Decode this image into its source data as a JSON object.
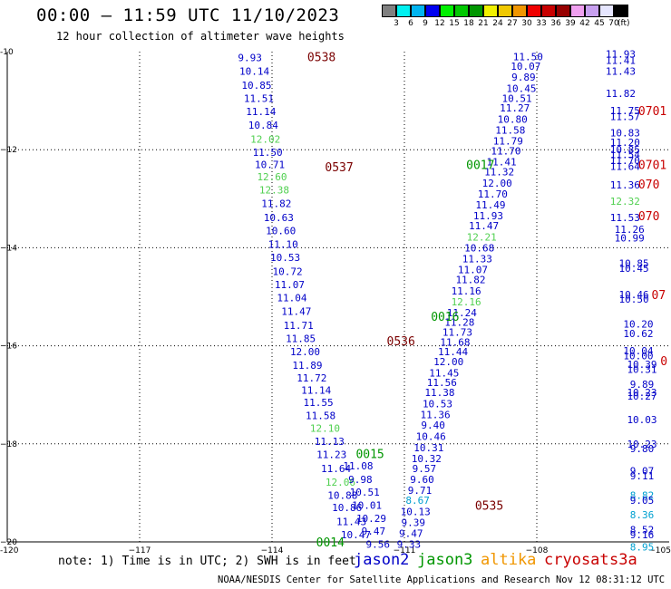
{
  "header": {
    "title": "00:00 – 11:59 UTC 11/10/2023",
    "subtitle": "12 hour collection of altimeter wave heights"
  },
  "legend": {
    "unit": "(ft)",
    "bins": [
      {
        "color": "#808080",
        "label": "3"
      },
      {
        "color": "#00f0f0",
        "label": "6"
      },
      {
        "color": "#00b4f0",
        "label": "9"
      },
      {
        "color": "#0000f0",
        "label": "12"
      },
      {
        "color": "#00f000",
        "label": "15"
      },
      {
        "color": "#00c800",
        "label": "18"
      },
      {
        "color": "#009600",
        "label": "21"
      },
      {
        "color": "#f0f000",
        "label": "24"
      },
      {
        "color": "#f0c800",
        "label": "27"
      },
      {
        "color": "#f09600",
        "label": "30"
      },
      {
        "color": "#f00000",
        "label": "33"
      },
      {
        "color": "#c80000",
        "label": "36"
      },
      {
        "color": "#960000",
        "label": "39"
      },
      {
        "color": "#f0a0f0",
        "label": "42"
      },
      {
        "color": "#c8a0f0",
        "label": "45"
      },
      {
        "color": "#e6e6ff",
        "label": "70"
      },
      {
        "color": "#000000",
        "label": ""
      }
    ]
  },
  "chart_data": {
    "type": "scatter",
    "title": "00:00 – 11:59 UTC 11/10/2023",
    "subtitle": "12 hour collection of altimeter wave heights",
    "xlim": [
      -120,
      -105
    ],
    "ylim": [
      -20,
      -10
    ],
    "xticks": [
      -120,
      -117,
      -114,
      -111,
      -108,
      -105
    ],
    "xtick_labels": [
      "-120",
      "−117",
      "−114",
      "−111",
      "−108",
      "−105"
    ],
    "yticks": [
      -10,
      -12,
      -14,
      -16,
      -18,
      -20
    ],
    "ytick_labels": [
      "-10",
      "−12",
      "−14",
      "−16",
      "−18",
      "−20"
    ],
    "grid": true,
    "colors": {
      "jason2": "#0000c8",
      "jason3": "#009600",
      "altika": "#f09600",
      "cryosat": "#c80000",
      "s3a": "#c80000",
      "light_green": "#50d050",
      "cyan": "#00a0d0",
      "pass_label": "#7a0000"
    },
    "pass_labels": [
      {
        "text": "0538",
        "x": -113.2,
        "y": -10.1,
        "color": "pass_label"
      },
      {
        "text": "0537",
        "x": -112.8,
        "y": -12.35,
        "color": "pass_label"
      },
      {
        "text": "0536",
        "x": -111.4,
        "y": -15.9,
        "color": "pass_label"
      },
      {
        "text": "0535",
        "x": -109.4,
        "y": -19.25,
        "color": "pass_label"
      },
      {
        "text": "0017",
        "x": -109.6,
        "y": -12.3,
        "color": "jason3"
      },
      {
        "text": "0016",
        "x": -110.4,
        "y": -15.4,
        "color": "jason3"
      },
      {
        "text": "0015",
        "x": -112.1,
        "y": -18.2,
        "color": "jason3"
      },
      {
        "text": "0014",
        "x": -113.0,
        "y": -20.0,
        "color": "jason3"
      },
      {
        "text": "0701",
        "x": -105.7,
        "y": -11.2,
        "color": "cryosat"
      },
      {
        "text": "0701",
        "x": -105.7,
        "y": -12.3,
        "color": "cryosat"
      },
      {
        "text": "070",
        "x": -105.7,
        "y": -12.7,
        "color": "cryosat"
      },
      {
        "text": "070",
        "x": -105.7,
        "y": -13.35,
        "color": "cryosat"
      },
      {
        "text": "07",
        "x": -105.4,
        "y": -14.95,
        "color": "cryosat"
      },
      {
        "text": "0",
        "x": -105.2,
        "y": -16.3,
        "color": "cryosat"
      }
    ],
    "series": [
      {
        "name": "pass 0538",
        "color": "jason2",
        "points": [
          {
            "x": -114.5,
            "y": -10.12,
            "v": "9.93"
          },
          {
            "x": -114.4,
            "y": -10.4,
            "v": "10.14"
          },
          {
            "x": -114.35,
            "y": -10.68,
            "v": "10.85"
          },
          {
            "x": -114.3,
            "y": -10.95,
            "v": "11.51"
          },
          {
            "x": -114.25,
            "y": -11.22,
            "v": "11.14"
          },
          {
            "x": -114.2,
            "y": -11.5,
            "v": "10.84"
          },
          {
            "x": -114.15,
            "y": -11.78,
            "v": "12.02",
            "c": "light_green"
          },
          {
            "x": -114.1,
            "y": -12.05,
            "v": "11.50"
          },
          {
            "x": -114.05,
            "y": -12.3,
            "v": "10.71"
          },
          {
            "x": -114.0,
            "y": -12.55,
            "v": "12.60",
            "c": "light_green"
          },
          {
            "x": -113.95,
            "y": -12.82,
            "v": "12.38",
            "c": "light_green"
          },
          {
            "x": -113.9,
            "y": -13.1,
            "v": "11.82"
          },
          {
            "x": -113.85,
            "y": -13.38,
            "v": "10.63"
          },
          {
            "x": -113.8,
            "y": -13.65,
            "v": "10.60"
          },
          {
            "x": -113.75,
            "y": -13.93,
            "v": "11.10"
          },
          {
            "x": -113.7,
            "y": -14.2,
            "v": "10.53"
          },
          {
            "x": -113.65,
            "y": -14.48,
            "v": "10.72"
          }
        ]
      },
      {
        "name": "pass 0537",
        "color": "jason2",
        "points": [
          {
            "x": -113.6,
            "y": -14.75,
            "v": "11.07"
          },
          {
            "x": -113.55,
            "y": -15.02,
            "v": "11.04"
          },
          {
            "x": -113.45,
            "y": -15.3,
            "v": "11.47"
          },
          {
            "x": -113.4,
            "y": -15.58,
            "v": "11.71"
          },
          {
            "x": -113.35,
            "y": -15.85,
            "v": "11.85"
          },
          {
            "x": -113.25,
            "y": -16.12,
            "v": "12.00"
          },
          {
            "x": -113.2,
            "y": -16.4,
            "v": "11.89"
          },
          {
            "x": -113.1,
            "y": -16.65,
            "v": "11.72"
          }
        ]
      },
      {
        "name": "pass 0536",
        "color": "jason2",
        "points": [
          {
            "x": -113.0,
            "y": -16.9,
            "v": "11.14"
          },
          {
            "x": -112.95,
            "y": -17.15,
            "v": "11.55"
          },
          {
            "x": -112.9,
            "y": -17.42,
            "v": "11.58"
          },
          {
            "x": -112.8,
            "y": -17.68,
            "v": "12.10",
            "c": "light_green"
          },
          {
            "x": -112.7,
            "y": -17.95,
            "v": "11.13"
          },
          {
            "x": -112.65,
            "y": -18.22,
            "v": "11.23"
          },
          {
            "x": -112.55,
            "y": -18.5,
            "v": "11.64"
          },
          {
            "x": -112.45,
            "y": -18.78,
            "v": "12.06",
            "c": "light_green"
          },
          {
            "x": -112.4,
            "y": -19.05,
            "v": "10.88"
          },
          {
            "x": -112.3,
            "y": -19.3,
            "v": "10.86"
          },
          {
            "x": -112.2,
            "y": -19.58,
            "v": "11.43"
          },
          {
            "x": -112.1,
            "y": -19.85,
            "v": "10.47"
          }
        ]
      },
      {
        "name": "pass 0535",
        "color": "jason2",
        "points": [
          {
            "x": -112.05,
            "y": -18.45,
            "v": "11.08"
          },
          {
            "x": -112.0,
            "y": -18.72,
            "v": "9.98"
          },
          {
            "x": -111.9,
            "y": -18.98,
            "v": "10.51"
          },
          {
            "x": -111.85,
            "y": -19.25,
            "v": "10.01"
          },
          {
            "x": -111.75,
            "y": -19.52,
            "v": "10.29"
          },
          {
            "x": -111.7,
            "y": -19.78,
            "v": "9.47"
          },
          {
            "x": -111.6,
            "y": -20.05,
            "v": "9.56"
          },
          {
            "x": -111.5,
            "y": -20.3,
            "v": "9.53"
          }
        ]
      },
      {
        "name": "pass 0017",
        "color": "jason2",
        "points": [
          {
            "x": -108.2,
            "y": -10.1,
            "v": "11.50"
          },
          {
            "x": -108.25,
            "y": -10.3,
            "v": "10.07"
          },
          {
            "x": -108.3,
            "y": -10.52,
            "v": "9.89"
          },
          {
            "x": -108.35,
            "y": -10.75,
            "v": "10.45"
          },
          {
            "x": -108.45,
            "y": -10.95,
            "v": "10.51"
          },
          {
            "x": -108.5,
            "y": -11.15,
            "v": "11.27"
          },
          {
            "x": -108.55,
            "y": -11.38,
            "v": "10.80"
          },
          {
            "x": -108.6,
            "y": -11.6,
            "v": "11.58"
          },
          {
            "x": -108.65,
            "y": -11.82,
            "v": "11.79"
          },
          {
            "x": -108.7,
            "y": -12.02,
            "v": "11.70"
          },
          {
            "x": -108.8,
            "y": -12.25,
            "v": "11.41"
          },
          {
            "x": -108.85,
            "y": -12.45,
            "v": "11.32"
          },
          {
            "x": -108.9,
            "y": -12.68,
            "v": "12.00"
          },
          {
            "x": -109.0,
            "y": -12.9,
            "v": "11.70"
          },
          {
            "x": -109.05,
            "y": -13.12,
            "v": "11.49"
          },
          {
            "x": -109.1,
            "y": -13.35,
            "v": "11.93"
          },
          {
            "x": -109.2,
            "y": -13.55,
            "v": "11.47"
          },
          {
            "x": -109.25,
            "y": -13.78,
            "v": "12.21",
            "c": "light_green"
          },
          {
            "x": -109.3,
            "y": -14.0,
            "v": "10.68"
          }
        ]
      },
      {
        "name": "pass 0016",
        "color": "jason2",
        "points": [
          {
            "x": -109.35,
            "y": -14.22,
            "v": "11.33"
          },
          {
            "x": -109.45,
            "y": -14.45,
            "v": "11.07"
          },
          {
            "x": -109.5,
            "y": -14.65,
            "v": "11.82"
          },
          {
            "x": -109.6,
            "y": -14.88,
            "v": "11.16"
          },
          {
            "x": -109.6,
            "y": -15.1,
            "v": "12.16",
            "c": "light_green"
          },
          {
            "x": -109.7,
            "y": -15.32,
            "v": "11.24"
          },
          {
            "x": -109.75,
            "y": -15.52,
            "v": "11.28"
          },
          {
            "x": -109.8,
            "y": -15.72,
            "v": "11.73"
          },
          {
            "x": -109.85,
            "y": -15.92,
            "v": "11.68"
          },
          {
            "x": -109.9,
            "y": -16.12,
            "v": "11.44"
          },
          {
            "x": -110.0,
            "y": -16.32,
            "v": "12.00"
          }
        ]
      },
      {
        "name": "pass 0015",
        "color": "jason2",
        "points": [
          {
            "x": -110.1,
            "y": -16.55,
            "v": "11.45"
          },
          {
            "x": -110.15,
            "y": -16.75,
            "v": "11.56"
          },
          {
            "x": -110.2,
            "y": -16.95,
            "v": "11.38"
          },
          {
            "x": -110.25,
            "y": -17.18,
            "v": "10.53"
          },
          {
            "x": -110.3,
            "y": -17.4,
            "v": "11.36"
          },
          {
            "x": -110.35,
            "y": -17.62,
            "v": "9.40"
          },
          {
            "x": -110.4,
            "y": -17.85,
            "v": "10.46"
          },
          {
            "x": -110.45,
            "y": -18.08,
            "v": "10.31"
          },
          {
            "x": -110.5,
            "y": -18.3,
            "v": "10.32"
          },
          {
            "x": -110.55,
            "y": -18.5,
            "v": "9.57"
          },
          {
            "x": -110.6,
            "y": -18.72,
            "v": "9.60"
          }
        ]
      },
      {
        "name": "pass 0014",
        "color": "jason2",
        "points": [
          {
            "x": -110.65,
            "y": -18.95,
            "v": "9.71"
          },
          {
            "x": -110.7,
            "y": -19.15,
            "v": "8.67",
            "c": "cyan"
          },
          {
            "x": -110.75,
            "y": -19.38,
            "v": "10.13"
          },
          {
            "x": -110.8,
            "y": -19.6,
            "v": "9.39"
          },
          {
            "x": -110.85,
            "y": -19.82,
            "v": "9.47"
          },
          {
            "x": -110.9,
            "y": -20.05,
            "v": "9.33"
          }
        ]
      },
      {
        "name": "pass 0701 east",
        "color": "jason2",
        "points": [
          {
            "x": -106.1,
            "y": -10.05,
            "v": "11.93"
          },
          {
            "x": -106.1,
            "y": -10.18,
            "v": "11.41"
          },
          {
            "x": -106.1,
            "y": -10.4,
            "v": "11.43"
          },
          {
            "x": -106.1,
            "y": -10.85,
            "v": "11.82"
          },
          {
            "x": -106.0,
            "y": -11.2,
            "v": "11.75"
          },
          {
            "x": -106.0,
            "y": -11.32,
            "v": "11.57"
          },
          {
            "x": -106.0,
            "y": -11.65,
            "v": "10.83"
          },
          {
            "x": -106.0,
            "y": -11.85,
            "v": "11.20"
          },
          {
            "x": -106.0,
            "y": -12.0,
            "v": "10.85"
          },
          {
            "x": -106.0,
            "y": -12.1,
            "v": "11.54"
          },
          {
            "x": -106.0,
            "y": -12.22,
            "v": "11.70"
          },
          {
            "x": -106.0,
            "y": -12.34,
            "v": "11.64"
          },
          {
            "x": -106.0,
            "y": -12.72,
            "v": "11.36"
          },
          {
            "x": -106.0,
            "y": -13.05,
            "v": "12.32",
            "c": "light_green"
          },
          {
            "x": -106.0,
            "y": -13.38,
            "v": "11.53"
          },
          {
            "x": -105.9,
            "y": -13.62,
            "v": "11.26"
          },
          {
            "x": -105.9,
            "y": -13.8,
            "v": "10.99"
          },
          {
            "x": -105.8,
            "y": -14.32,
            "v": "10.85"
          },
          {
            "x": -105.8,
            "y": -14.42,
            "v": "10.45"
          },
          {
            "x": -105.8,
            "y": -14.95,
            "v": "10.46"
          },
          {
            "x": -105.8,
            "y": -15.05,
            "v": "10.50"
          },
          {
            "x": -105.7,
            "y": -15.55,
            "v": "10.20"
          },
          {
            "x": -105.7,
            "y": -15.75,
            "v": "10.62"
          },
          {
            "x": -105.7,
            "y": -16.1,
            "v": "10.04"
          },
          {
            "x": -105.7,
            "y": -16.2,
            "v": "10.00"
          },
          {
            "x": -105.6,
            "y": -16.38,
            "v": "10.39"
          },
          {
            "x": -105.6,
            "y": -16.48,
            "v": "10.31"
          },
          {
            "x": -105.6,
            "y": -16.78,
            "v": "9.89"
          },
          {
            "x": -105.6,
            "y": -16.95,
            "v": "10.23"
          },
          {
            "x": -105.6,
            "y": -17.02,
            "v": "10.27"
          },
          {
            "x": -105.6,
            "y": -17.5,
            "v": "10.03"
          },
          {
            "x": -105.5,
            "y": -18.0,
            "v": "10.23"
          },
          {
            "x": -105.5,
            "y": -18.1,
            "v": "9.80"
          },
          {
            "x": -105.5,
            "y": -18.55,
            "v": "9.07"
          },
          {
            "x": -105.5,
            "y": -18.65,
            "v": "9.11"
          },
          {
            "x": -105.5,
            "y": -19.05,
            "v": "8.82",
            "c": "cyan"
          },
          {
            "x": -105.4,
            "y": -19.15,
            "v": "9.05"
          },
          {
            "x": -105.4,
            "y": -19.45,
            "v": "8.36",
            "c": "cyan"
          },
          {
            "x": -105.4,
            "y": -19.75,
            "v": "8.52"
          },
          {
            "x": -105.4,
            "y": -19.85,
            "v": "9.16"
          },
          {
            "x": -105.4,
            "y": -20.1,
            "v": "8.95",
            "c": "cyan"
          },
          {
            "x": -105.3,
            "y": -20.35,
            "v": "8.91",
            "c": "cyan"
          }
        ]
      }
    ]
  },
  "note": "note: 1) Time is in UTC; 2) SWH is in feet",
  "satellites": [
    {
      "name": "jason2",
      "color": "#0000c8"
    },
    {
      "name": "jason3",
      "color": "#009600"
    },
    {
      "name": "altika",
      "color": "#f09600"
    },
    {
      "name": "cryosat",
      "color": "#c80000"
    },
    {
      "name": "s3a",
      "color": "#c80000"
    }
  ],
  "footer": "NOAA/NESDIS Center for Satellite Applications and Research   Nov 12 08:31:12 UTC 2023"
}
